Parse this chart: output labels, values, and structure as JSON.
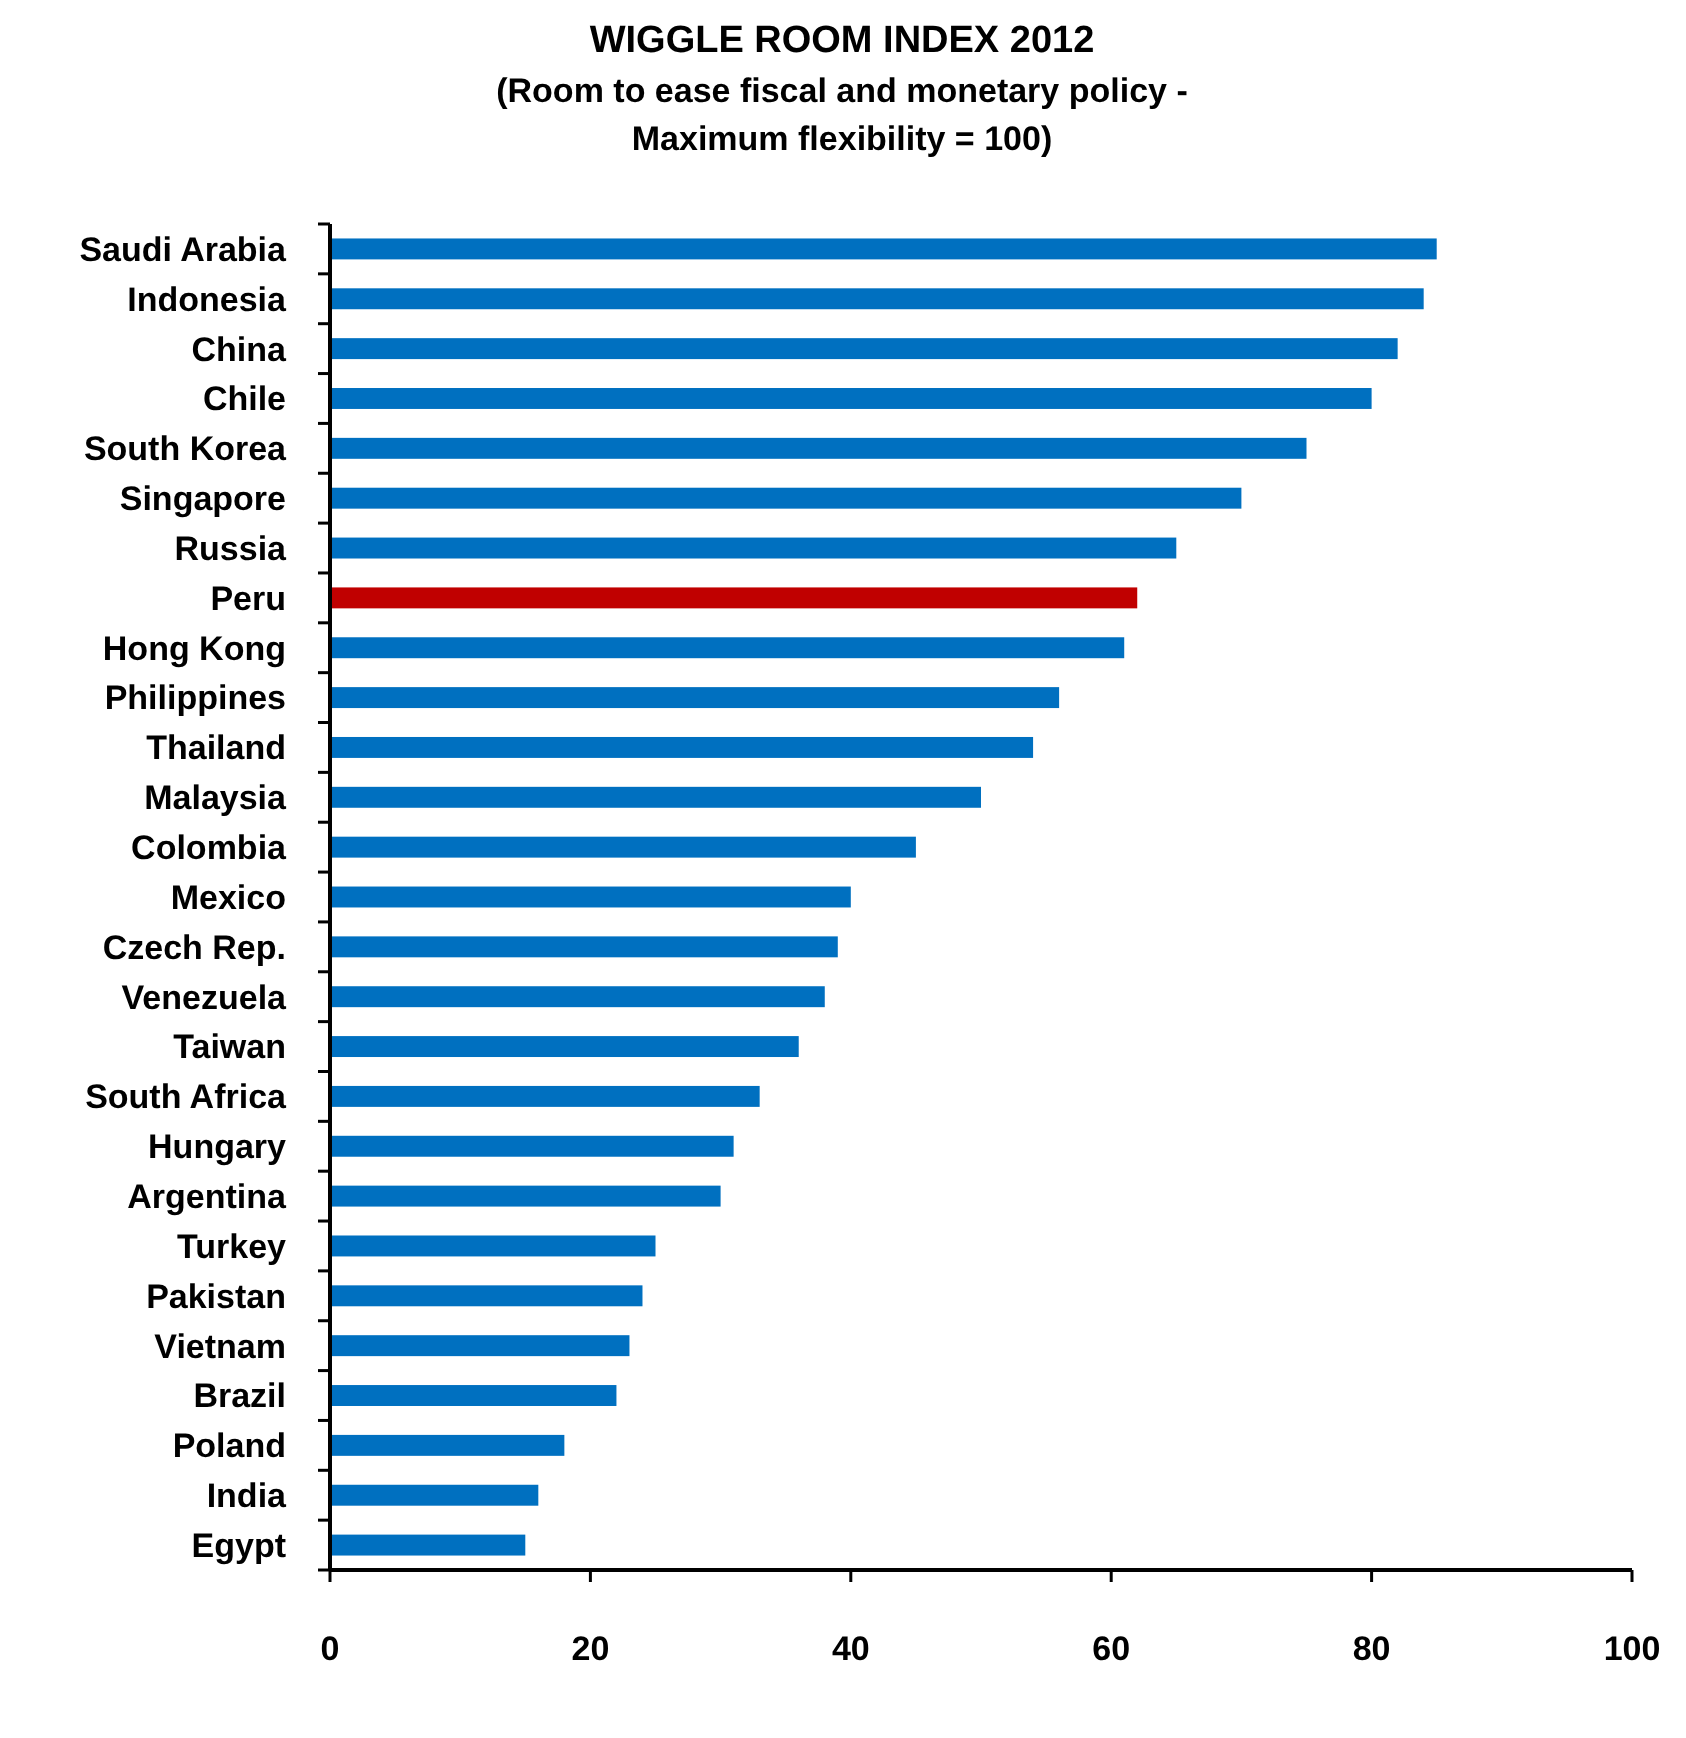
{
  "chart_data": {
    "type": "bar",
    "orientation": "horizontal",
    "title": "WIGGLE ROOM INDEX 2012",
    "subtitle": "(Room to ease fiscal and monetary policy -\nMaximum flexibility = 100)",
    "categories": [
      "Saudi Arabia",
      "Indonesia",
      "China",
      "Chile",
      "South Korea",
      "Singapore",
      "Russia",
      "Peru",
      "Hong Kong",
      "Philippines",
      "Thailand",
      "Malaysia",
      "Colombia",
      "Mexico",
      "Czech Rep.",
      "Venezuela",
      "Taiwan",
      "South Africa",
      "Hungary",
      "Argentina",
      "Turkey",
      "Pakistan",
      "Vietnam",
      "Brazil",
      "Poland",
      "India",
      "Egypt"
    ],
    "values": [
      85,
      84,
      82,
      80,
      75,
      70,
      65,
      62,
      61,
      56,
      54,
      50,
      45,
      40,
      39,
      38,
      36,
      33,
      31,
      30,
      25,
      24,
      23,
      22,
      18,
      16,
      15
    ],
    "colors": [
      "#0070c0",
      "#0070c0",
      "#0070c0",
      "#0070c0",
      "#0070c0",
      "#0070c0",
      "#0070c0",
      "#c00000",
      "#0070c0",
      "#0070c0",
      "#0070c0",
      "#0070c0",
      "#0070c0",
      "#0070c0",
      "#0070c0",
      "#0070c0",
      "#0070c0",
      "#0070c0",
      "#0070c0",
      "#0070c0",
      "#0070c0",
      "#0070c0",
      "#0070c0",
      "#0070c0",
      "#0070c0",
      "#0070c0",
      "#0070c0"
    ],
    "xlim": [
      0,
      100
    ],
    "xticks": [
      0,
      20,
      40,
      60,
      80,
      100
    ]
  }
}
